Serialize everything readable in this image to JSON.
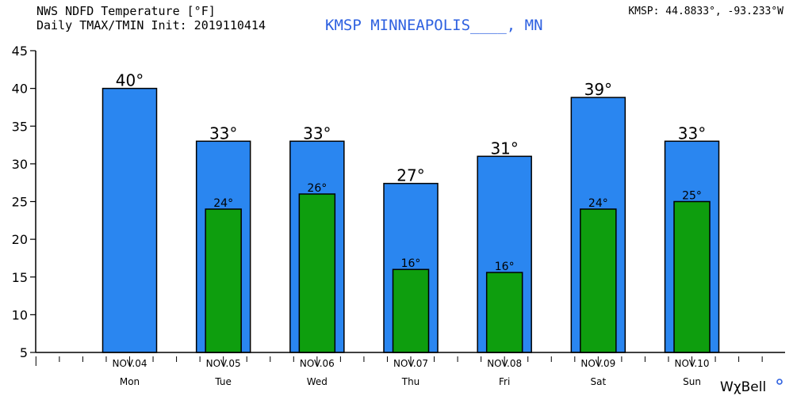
{
  "header": {
    "title_line1": "NWS NDFD Temperature [°F]",
    "title_line2": "Daily TMAX/TMIN Init: 2019110414",
    "station": "KMSP MINNEAPOLIS____, MN",
    "coords": "KMSP: 44.8833°, -93.233°W"
  },
  "branding": {
    "logo_text": "WxBell",
    "logo_symbol": "χ"
  },
  "colors": {
    "tmax": "#2a86f0",
    "tmin": "#0e9e0e",
    "station_text": "#2e61e0"
  },
  "chart_data": {
    "type": "bar",
    "title": "NWS NDFD Temperature [°F]",
    "subtitle": "Daily TMAX/TMIN Init: 2019110414",
    "categories": [
      "NOV.04",
      "NOV.05",
      "NOV.06",
      "NOV.07",
      "NOV.08",
      "NOV.09",
      "NOV.10"
    ],
    "days": [
      "Mon",
      "Tue",
      "Wed",
      "Thu",
      "Fri",
      "Sat",
      "Sun"
    ],
    "series": [
      {
        "values": [
          40,
          33,
          33,
          27.4,
          31,
          38.8,
          33
        ],
        "labels": [
          "40°",
          "33°",
          "33°",
          "27°",
          "31°",
          "39°",
          "33°"
        ]
      },
      {
        "values": [
          null,
          24,
          26,
          16,
          15.6,
          24,
          25
        ],
        "labels": [
          "",
          "24°",
          "26°",
          "16°",
          "16°",
          "24°",
          "25°"
        ]
      }
    ],
    "ylim": [
      5,
      45
    ],
    "yticks": [
      "5",
      "10",
      "15",
      "20",
      "25",
      "30",
      "35",
      "40",
      "45"
    ],
    "grid": false,
    "legend": "none"
  }
}
